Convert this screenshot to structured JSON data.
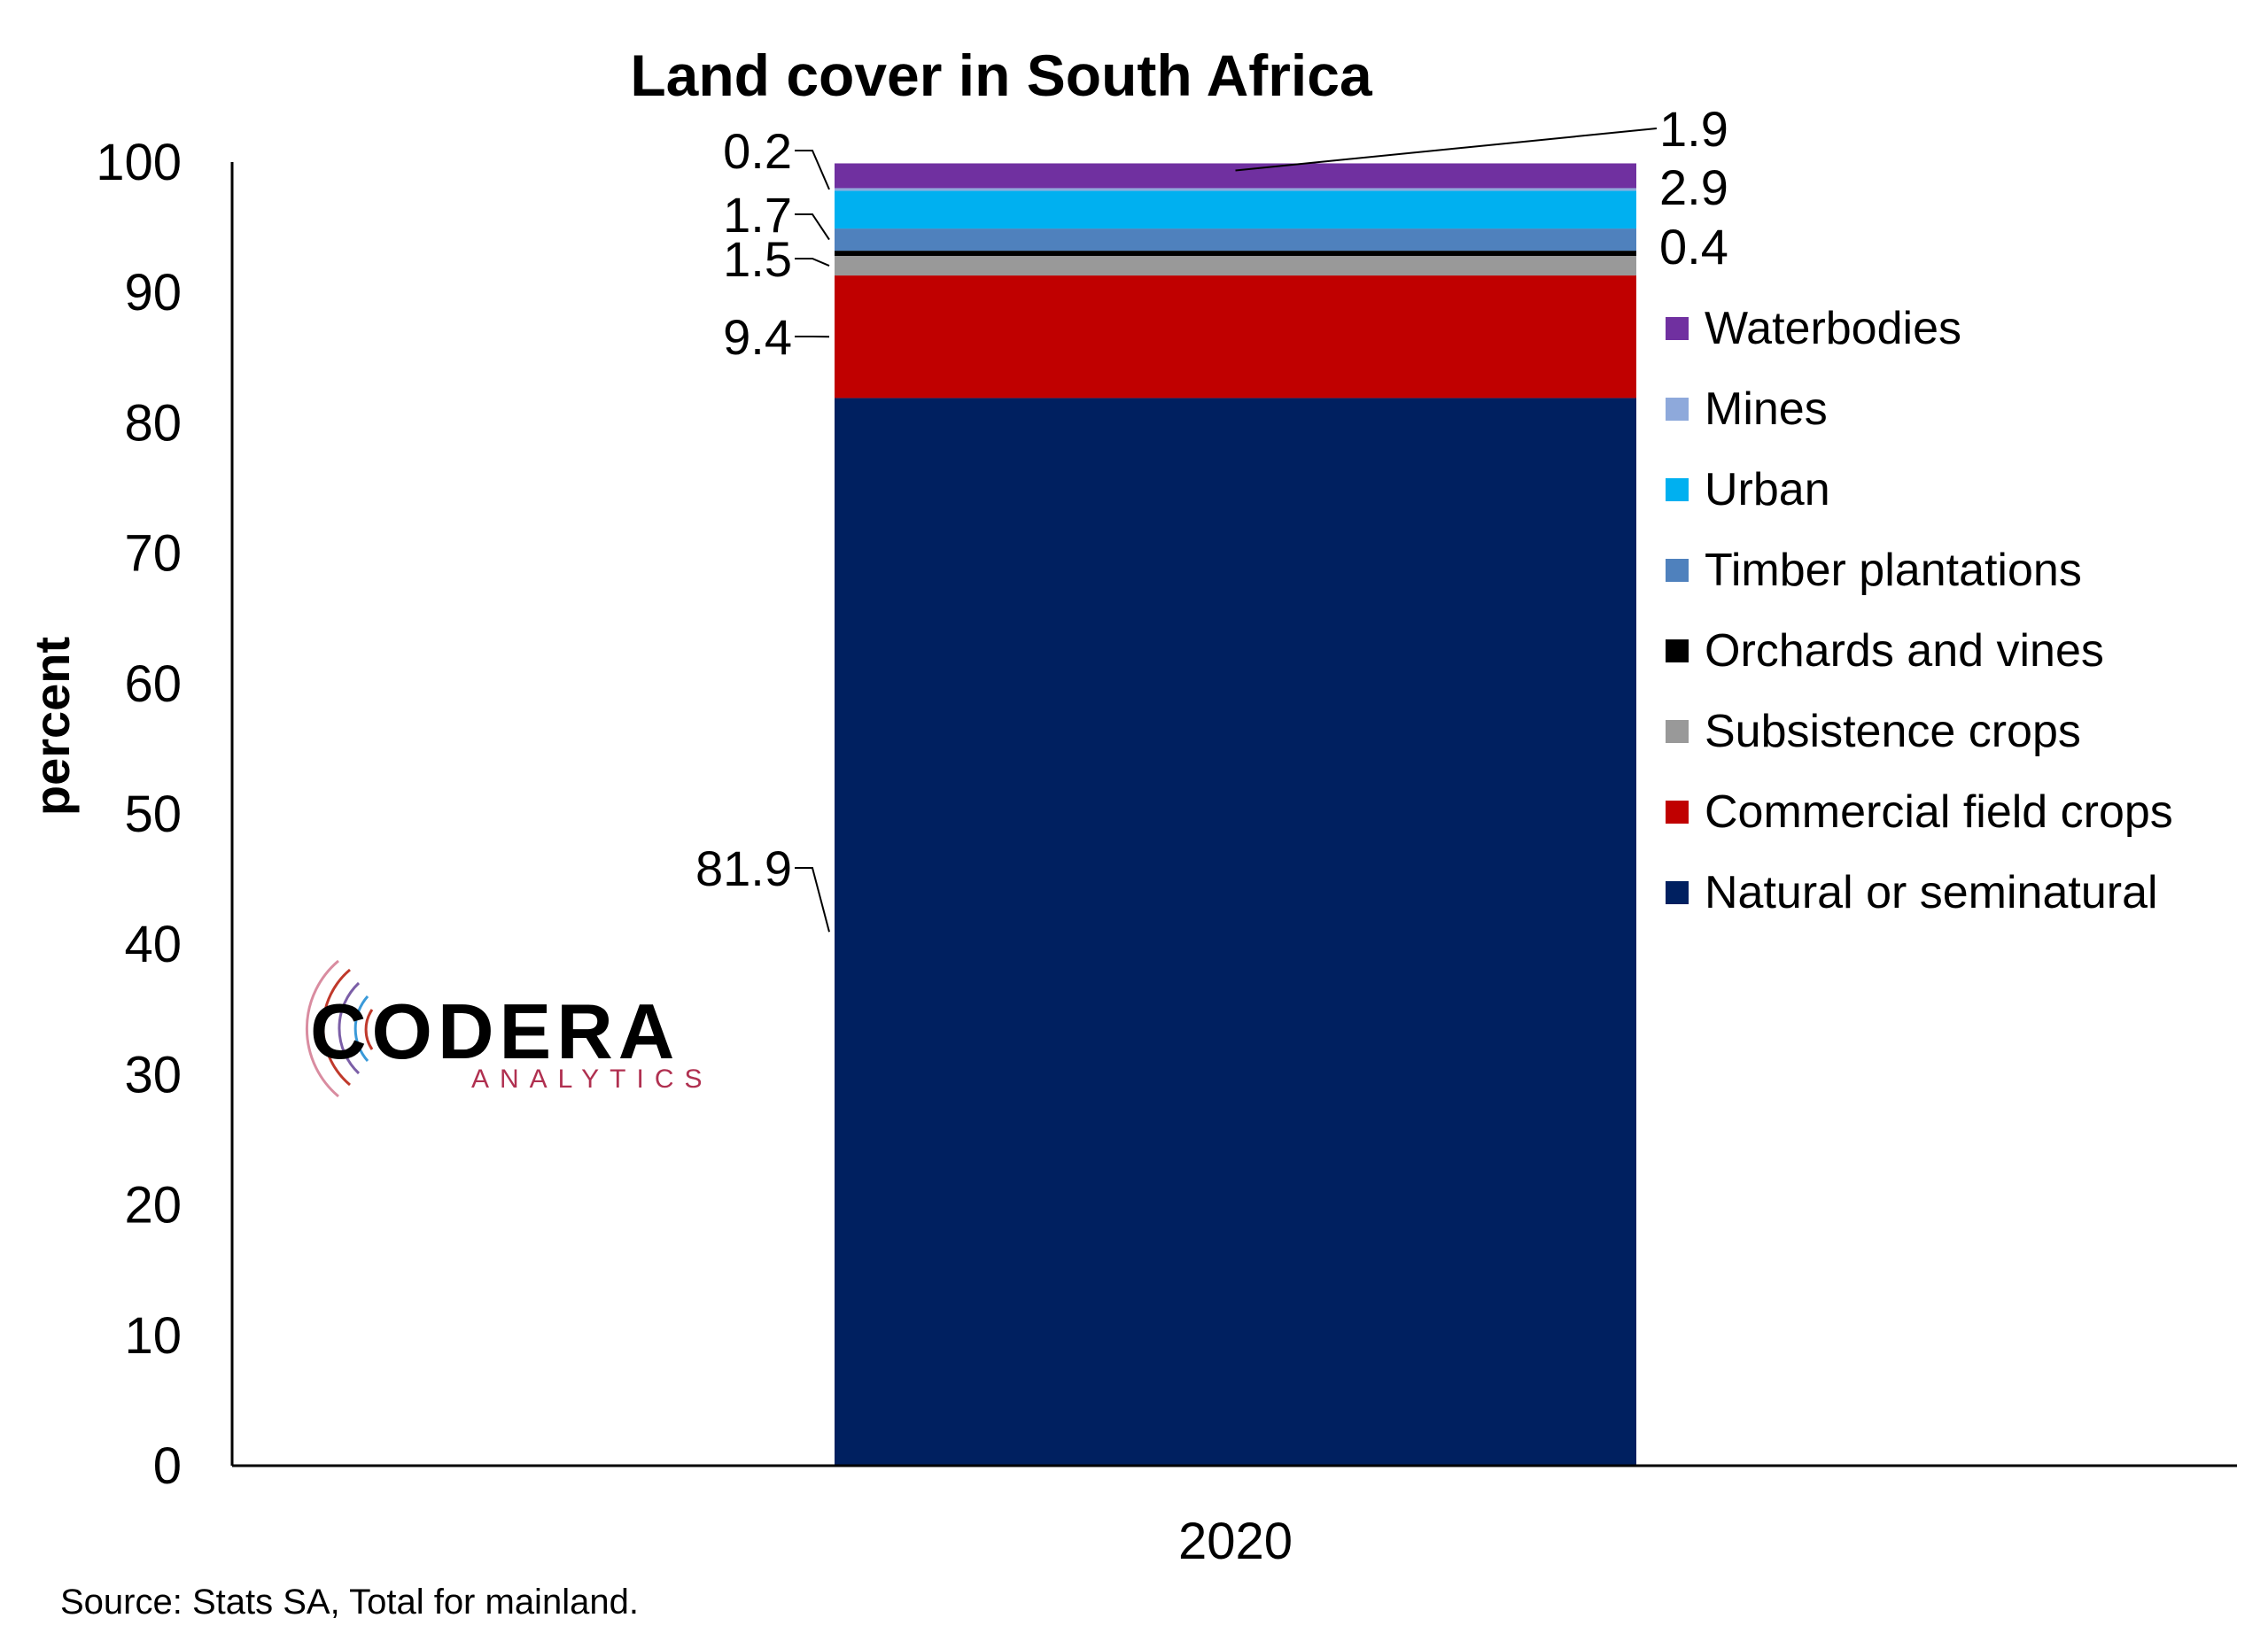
{
  "chart_data": {
    "type": "bar",
    "stacked": true,
    "title": "Land cover in South Africa",
    "ylabel": "percent",
    "xlabel": "",
    "categories": [
      "2020"
    ],
    "ylim": [
      0,
      100
    ],
    "yticks": [
      0,
      10,
      20,
      30,
      40,
      50,
      60,
      70,
      80,
      90,
      100
    ],
    "grid": false,
    "legend_position": "right",
    "series": [
      {
        "name": "Natural or seminatural",
        "values": [
          81.9
        ],
        "color": "#002060",
        "label": "81.9",
        "label_side": "left"
      },
      {
        "name": "Commercial field crops",
        "values": [
          9.4
        ],
        "color": "#C00000",
        "label": "9.4",
        "label_side": "left"
      },
      {
        "name": "Subsistence crops",
        "values": [
          1.5
        ],
        "color": "#999999",
        "label": "1.5",
        "label_side": "left"
      },
      {
        "name": "Orchards and vines",
        "values": [
          0.4
        ],
        "color": "#000000",
        "label": "0.4",
        "label_side": "right"
      },
      {
        "name": "Timber plantations",
        "values": [
          1.7
        ],
        "color": "#4F81BD",
        "label": "1.7",
        "label_side": "left"
      },
      {
        "name": "Urban",
        "values": [
          2.9
        ],
        "color": "#00B0F0",
        "label": "2.9",
        "label_side": "right"
      },
      {
        "name": "Mines",
        "values": [
          0.2
        ],
        "color": "#8EA9DB",
        "label": "0.2",
        "label_side": "left"
      },
      {
        "name": "Waterbodies",
        "values": [
          1.9
        ],
        "color": "#7030A0",
        "label": "1.9",
        "label_side": "right"
      }
    ],
    "legend_order": [
      "Waterbodies",
      "Mines",
      "Urban",
      "Timber plantations",
      "Orchards and vines",
      "Subsistence crops",
      "Commercial field crops",
      "Natural or seminatural"
    ]
  },
  "footer": {
    "source": "Source: Stats SA, Total for mainland."
  },
  "logo": {
    "name": "CODERA",
    "subtitle": "ANALYTICS"
  }
}
